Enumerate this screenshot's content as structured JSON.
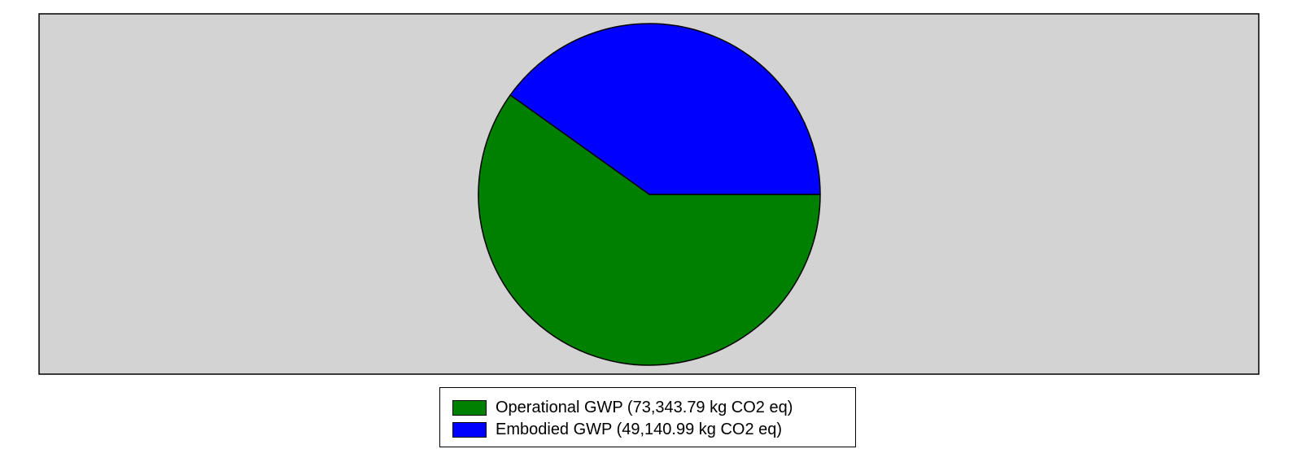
{
  "chart_data": {
    "type": "pie",
    "title": "",
    "background_color": "#d3d3d3",
    "start_angle_deg": 0,
    "direction": "clockwise",
    "legend_position": "bottom-center",
    "slices": [
      {
        "label": "Operational GWP (73,343.79 kg CO2 eq)",
        "name": "Operational GWP",
        "value": 73343.79,
        "unit": "kg CO2 eq",
        "color": "#008000"
      },
      {
        "label": "Embodied GWP (49,140.99 kg CO2 eq)",
        "name": "Embodied GWP",
        "value": 49140.99,
        "unit": "kg CO2 eq",
        "color": "#0000ff"
      }
    ]
  }
}
